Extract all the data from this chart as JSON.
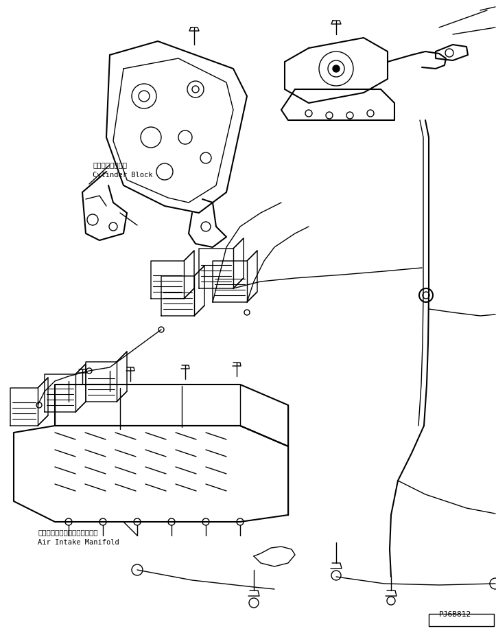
{
  "background_color": "#ffffff",
  "line_color": "#000000",
  "title_code": "PJ6B812",
  "label_cylinder": "シリンダブロック",
  "label_cylinder_en": "Cylinder Block",
  "label_air": "エアーインテイクマニホルード",
  "label_air_en": "Air Intake Manifold",
  "lw": 1.0,
  "lw_thick": 1.5
}
